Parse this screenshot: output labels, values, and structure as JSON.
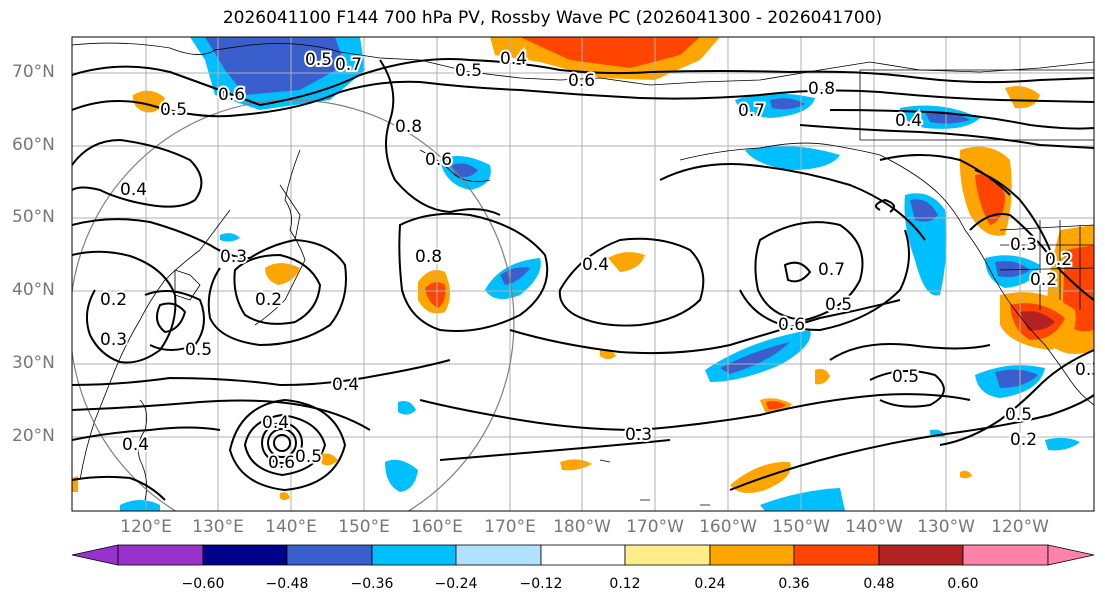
{
  "title": "2026041100 F144 700 hPa PV, Rossby Wave PC (2026041300 - 2026041700)",
  "lat_labels": [
    "70°N",
    "60°N",
    "50°N",
    "40°N",
    "30°N",
    "20°N"
  ],
  "lon_labels": [
    "120°E",
    "130°E",
    "140°E",
    "150°E",
    "160°E",
    "170°E",
    "180°W",
    "170°W",
    "160°W",
    "150°W",
    "140°W",
    "130°W",
    "120°W"
  ],
  "contour_labels": [
    "0.4",
    "0.5",
    "0.6",
    "0.7",
    "0.8",
    "0.6",
    "0.5",
    "0.8",
    "0.6",
    "0.4",
    "0.5",
    "0.4",
    "0.3",
    "0.2",
    "0.3",
    "0.2",
    "0.5",
    "0.4",
    "0.8",
    "0.4",
    "0.6",
    "0.7",
    "0.5",
    "0.4",
    "0.3",
    "0.4",
    "0.6",
    "0.5",
    "0.3",
    "0.2",
    "0.5",
    "0.5",
    "0.2",
    "0.2",
    "0.3",
    "0.7"
  ],
  "colorbar": {
    "ticks": [
      "−0.60",
      "−0.48",
      "−0.36",
      "−0.24",
      "−0.12",
      "0.12",
      "0.24",
      "0.36",
      "0.48",
      "0.60"
    ],
    "colors": [
      "#9932cc",
      "#00008b",
      "#3a5fcd",
      "#00bfff",
      "#b0e2ff",
      "#ffffff",
      "#ffec8b",
      "#ffa500",
      "#ff4500",
      "#b22222",
      "#ff82ab"
    ]
  },
  "colors": {
    "land_line": "#000000",
    "grid": "#b0b0b0",
    "contour": "#000000",
    "circle": "#808080"
  }
}
